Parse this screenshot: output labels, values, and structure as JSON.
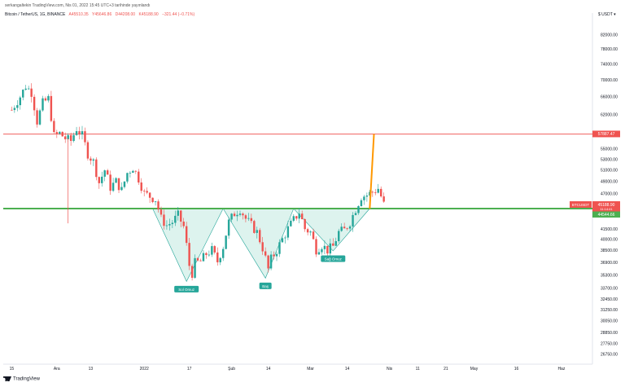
{
  "header": {
    "publisher": "serkangaltekin TradingView.com, Nis 01, 2022 15:45 UTC+3 tarihinde yayınlandı",
    "symbol": "Bitcoin / TetherUS, 1G, BINANCE",
    "open": "A45510.35",
    "high": "Y45646.86",
    "low": "D44208.00",
    "close": "K45188.90",
    "change": "−321.44 (−0.71%)"
  },
  "currency": "$ USDT ▾",
  "footer": {
    "brand": "TradingView"
  },
  "colors": {
    "up": "#26a69a",
    "down": "#ef5350",
    "neckline": "#4caf50",
    "resistance": "#ef5350",
    "target": "#ff9800",
    "pattern_fill": "#d9f2ec"
  },
  "chart_data": {
    "type": "candlestick",
    "yscale": "log",
    "ylim": [
      25800,
      86000
    ],
    "y_ticks": [
      82000,
      78000,
      74000,
      70000,
      66000,
      62000,
      55000,
      53000,
      51000,
      49000,
      47000,
      43500,
      41500,
      40000,
      38500,
      36900,
      35300,
      33700,
      32450,
      31250,
      30050,
      28850,
      27750,
      26750
    ],
    "x_ticks": [
      "15",
      "Ara",
      "13",
      "2022",
      "17",
      "Şub",
      "14",
      "Mar",
      "14",
      "Nis",
      "11",
      "21",
      "May",
      "16",
      "Haz"
    ],
    "x_tick_days": [
      0,
      16,
      28,
      47,
      63,
      78,
      91,
      106,
      119,
      134,
      144,
      154,
      164,
      179,
      195
    ],
    "x_range": [
      -3,
      206
    ],
    "price_labels": [
      {
        "value": 57887.47,
        "text": "57887.47",
        "color": "#ef5350"
      },
      {
        "value": 45188.9,
        "text": "45188.90",
        "color": "#ef5350"
      },
      {
        "value": 44544.66,
        "text": "44544.66",
        "color": "#4caf50"
      }
    ],
    "symbol_badge": "BTCUSDT",
    "countdown": "11:14:41",
    "horizontal_lines": [
      {
        "name": "resistance",
        "value": 57887.47,
        "color": "#ef5350"
      },
      {
        "name": "neckline",
        "value": 44544.66,
        "color": "#4caf50"
      }
    ],
    "target_projection": {
      "from_day": 127,
      "from": 44544.66,
      "to_day": 128.5,
      "to": 57887.47
    },
    "pattern": {
      "type": "inverse-head-and-shoulders",
      "points": [
        [
          50,
          44544
        ],
        [
          62,
          34500
        ],
        [
          75,
          44544
        ],
        [
          90,
          34900
        ],
        [
          100,
          44544
        ],
        [
          114,
          38400
        ],
        [
          127,
          44544
        ]
      ],
      "labels": [
        {
          "text": "Sol Omuz",
          "day": 62,
          "price": 34500
        },
        {
          "text": "Baş",
          "day": 90,
          "price": 34900
        },
        {
          "text": "Sağ Omuz",
          "day": 114,
          "price": 38400
        }
      ]
    },
    "ohlc_anchors": [
      [
        0,
        63000
      ],
      [
        3,
        66000
      ],
      [
        5,
        68500
      ],
      [
        7,
        67000
      ],
      [
        9,
        60500
      ],
      [
        11,
        64500
      ],
      [
        13,
        65500
      ],
      [
        15,
        57500
      ],
      [
        17,
        58000
      ],
      [
        19,
        57000
      ],
      [
        21,
        56500
      ],
      [
        23,
        59000
      ],
      [
        25,
        57500
      ],
      [
        27,
        54000
      ],
      [
        29,
        52500
      ],
      [
        31,
        48800
      ],
      [
        33,
        51000
      ],
      [
        35,
        48000
      ],
      [
        37,
        49000
      ],
      [
        39,
        47500
      ],
      [
        41,
        50500
      ],
      [
        43,
        51500
      ],
      [
        45,
        49500
      ],
      [
        47,
        47000
      ],
      [
        49,
        46500
      ],
      [
        51,
        46000
      ],
      [
        53,
        43000
      ],
      [
        55,
        42000
      ],
      [
        57,
        42500
      ],
      [
        59,
        43500
      ],
      [
        61,
        41800
      ],
      [
        63,
        36500
      ],
      [
        64,
        35500
      ],
      [
        65,
        36800
      ],
      [
        67,
        37000
      ],
      [
        69,
        38000
      ],
      [
        71,
        38500
      ],
      [
        73,
        37000
      ],
      [
        75,
        39000
      ],
      [
        77,
        42500
      ],
      [
        79,
        43800
      ],
      [
        81,
        44500
      ],
      [
        83,
        43000
      ],
      [
        85,
        42000
      ],
      [
        87,
        41000
      ],
      [
        89,
        38800
      ],
      [
        91,
        36000
      ],
      [
        92,
        37300
      ],
      [
        94,
        38500
      ],
      [
        96,
        40000
      ],
      [
        98,
        41500
      ],
      [
        100,
        42800
      ],
      [
        102,
        44000
      ],
      [
        104,
        41500
      ],
      [
        106,
        41000
      ],
      [
        108,
        38600
      ],
      [
        110,
        39200
      ],
      [
        112,
        38500
      ],
      [
        114,
        39000
      ],
      [
        116,
        41000
      ],
      [
        118,
        41300
      ],
      [
        120,
        42500
      ],
      [
        122,
        44500
      ],
      [
        124,
        46500
      ],
      [
        126,
        46700
      ],
      [
        128,
        47200
      ],
      [
        130,
        47800
      ],
      [
        132,
        45200
      ]
    ]
  }
}
